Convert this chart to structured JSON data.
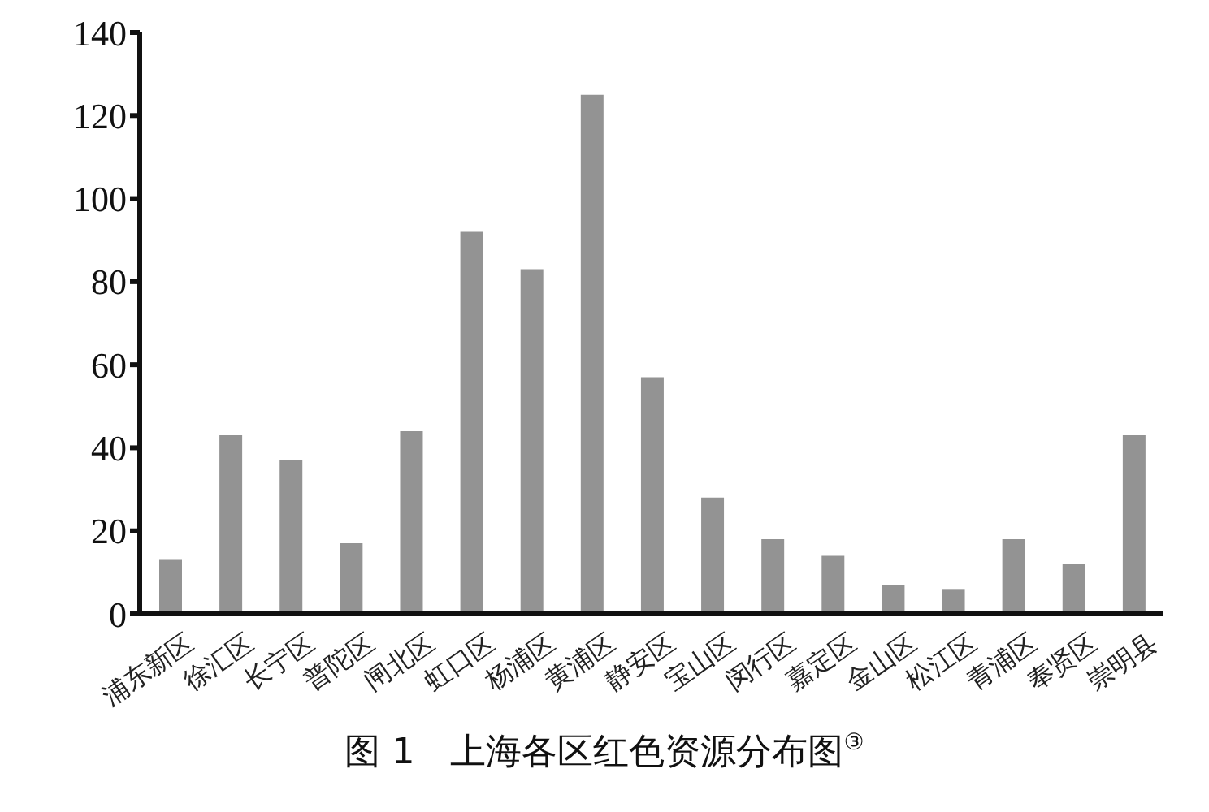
{
  "chart_data": {
    "type": "bar",
    "title": "图 1　上海各区红色资源分布图$^{③}$",
    "categories": [
      "浦东新区",
      "徐汇区",
      "长宁区",
      "普陀区",
      "闸北区",
      "虹口区",
      "杨浦区",
      "黄浦区",
      "静安区",
      "宝山区",
      "闵行区",
      "嘉定区",
      "金山区",
      "松江区",
      "青浦区",
      "奉贤区",
      "崇明县"
    ],
    "values": [
      13,
      43,
      37,
      17,
      44,
      92,
      83,
      125,
      57,
      28,
      18,
      14,
      7,
      6,
      18,
      12,
      43
    ],
    "color": "#939393",
    "ylim": [
      0,
      140
    ],
    "yticks": [
      0,
      20,
      40,
      60,
      80,
      100,
      120,
      140
    ],
    "grid": false
  }
}
